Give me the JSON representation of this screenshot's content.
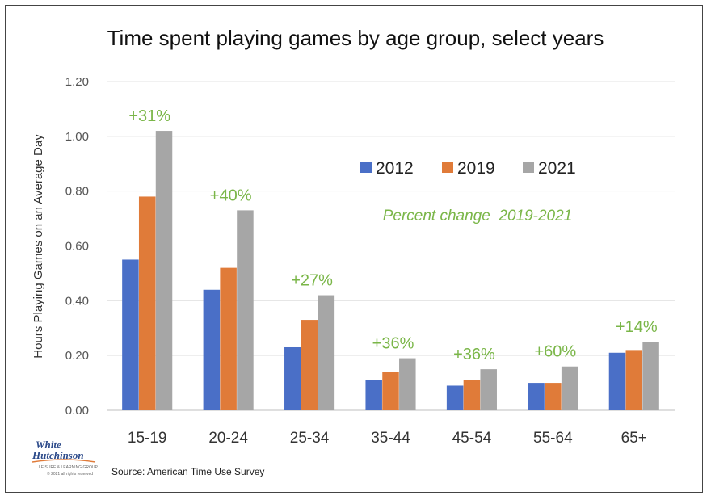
{
  "chart_data": {
    "type": "bar",
    "title": "Time spent playing games by age group, select years",
    "ylabel": "Hours Playing Games on an Average Day",
    "ylim": [
      0,
      1.2
    ],
    "yticks": [
      "0.00",
      "0.20",
      "0.40",
      "0.60",
      "0.80",
      "1.00",
      "1.20"
    ],
    "categories": [
      "15-19",
      "20-24",
      "25-34",
      "35-44",
      "45-54",
      "55-64",
      "65+"
    ],
    "series": [
      {
        "name": "2012",
        "color": "#4a6fc7",
        "values": [
          0.55,
          0.44,
          0.23,
          0.11,
          0.09,
          0.1,
          0.21
        ]
      },
      {
        "name": "2019",
        "color": "#e07b39",
        "values": [
          0.78,
          0.52,
          0.33,
          0.14,
          0.11,
          0.1,
          0.22
        ]
      },
      {
        "name": "2021",
        "color": "#a6a6a6",
        "values": [
          1.02,
          0.73,
          0.42,
          0.19,
          0.15,
          0.16,
          0.25
        ]
      }
    ],
    "annotations": [
      "+31%",
      "+40%",
      "+27%",
      "+36%",
      "+36%",
      "+60%",
      "+14%"
    ],
    "annotation_color": "#7ab648",
    "note": "Percent change  2019-2021",
    "legend_position": "top-right",
    "grid": true
  },
  "source": "Source: American Time Use Survey",
  "logo": {
    "line1": "White",
    "line2": "Hutchinson",
    "tagline": "LEISURE & LEARNING GROUP",
    "fine_print": "© 2021 all rights reserved"
  }
}
